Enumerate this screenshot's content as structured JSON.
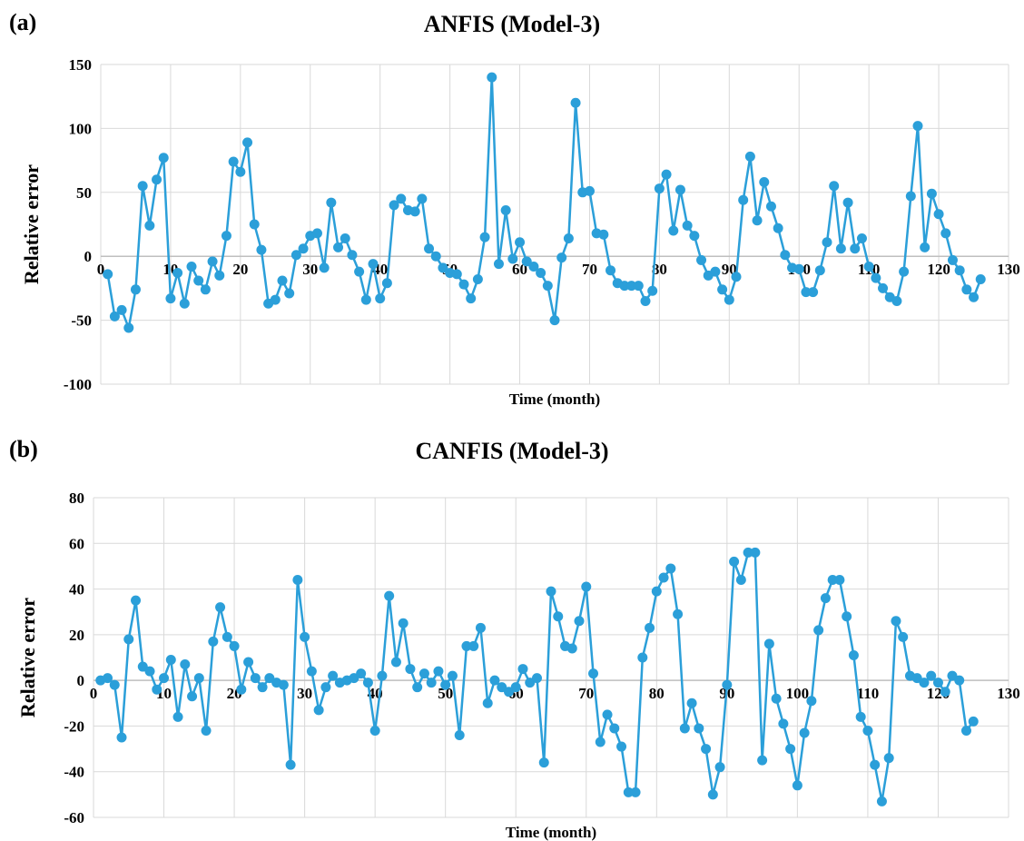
{
  "colors": {
    "series": "#2b9fd9",
    "grid": "#d9d9d9",
    "axis": "#bfbfbf"
  },
  "panels": [
    {
      "tag": "(a)"
    },
    {
      "tag": "(b)"
    }
  ],
  "chart_data": [
    {
      "type": "line",
      "title": "ANFIS (Model-3)",
      "xlabel": "Time (month)",
      "ylabel": "Relative error",
      "xlim": [
        0,
        130
      ],
      "ylim": [
        -100,
        150
      ],
      "xticks": [
        0,
        10,
        20,
        30,
        40,
        50,
        60,
        70,
        80,
        90,
        100,
        110,
        120,
        130
      ],
      "yticks": [
        -100,
        -50,
        0,
        50,
        100,
        150
      ],
      "grid": true,
      "markers": true,
      "series": [
        {
          "values": [
            -14,
            -47,
            -42,
            -56,
            -26,
            55,
            24,
            60,
            77,
            -33,
            -13,
            -37,
            -8,
            -19,
            -26,
            -4,
            -15,
            16,
            74,
            66,
            89,
            25,
            5,
            -37,
            -34,
            -19,
            -29,
            1,
            6,
            16,
            18,
            -9,
            42,
            7,
            14,
            1,
            -12,
            -34,
            -6,
            -33,
            -21,
            40,
            45,
            36,
            35,
            45,
            6,
            0,
            -9,
            -13,
            -14,
            -22,
            -33,
            -18,
            15,
            140,
            -6,
            36,
            -2,
            11,
            -4,
            -8,
            -13,
            -23,
            -50,
            -1,
            14,
            120,
            50,
            51,
            18,
            17,
            -11,
            -21,
            -23,
            -23,
            -23,
            -35,
            -27,
            53,
            64,
            20,
            52,
            24,
            16,
            -3,
            -15,
            -12,
            -26,
            -34,
            -16,
            44,
            78,
            28,
            58,
            39,
            22,
            1,
            -9,
            -10,
            -28,
            -28,
            -11,
            11,
            55,
            6,
            42,
            6,
            14,
            -8,
            -17,
            -25,
            -32,
            -35,
            -12,
            47,
            102,
            7,
            49,
            33,
            18,
            -3,
            -11,
            -26,
            -32,
            -18
          ]
        }
      ]
    },
    {
      "type": "line",
      "title": "CANFIS (Model-3)",
      "xlabel": "Time (month)",
      "ylabel": "Relative error",
      "xlim": [
        0,
        130
      ],
      "ylim": [
        -60,
        80
      ],
      "xticks": [
        0,
        10,
        20,
        30,
        40,
        50,
        60,
        70,
        80,
        90,
        100,
        110,
        120,
        130
      ],
      "yticks": [
        -60,
        -40,
        -20,
        0,
        20,
        40,
        60,
        80
      ],
      "grid": true,
      "markers": true,
      "series": [
        {
          "values": [
            0,
            1,
            -2,
            -25,
            18,
            35,
            6,
            4,
            -4,
            1,
            9,
            -16,
            7,
            -7,
            1,
            -22,
            17,
            32,
            19,
            15,
            -4,
            8,
            1,
            -3,
            1,
            -1,
            -2,
            -37,
            44,
            19,
            4,
            -13,
            -3,
            2,
            -1,
            0,
            1,
            3,
            -1,
            -22,
            2,
            37,
            8,
            25,
            5,
            -3,
            3,
            -1,
            4,
            -2,
            2,
            -24,
            15,
            15,
            23,
            -10,
            0,
            -3,
            -5,
            -3,
            5,
            -1,
            1,
            -36,
            39,
            28,
            15,
            14,
            26,
            41,
            3,
            -27,
            -15,
            -21,
            -29,
            -49,
            -49,
            10,
            23,
            39,
            45,
            49,
            29,
            -21,
            -10,
            -21,
            -30,
            -50,
            -38,
            -2,
            52,
            44,
            56,
            56,
            -35,
            16,
            -8,
            -19,
            -30,
            -46,
            -23,
            -9,
            22,
            36,
            44,
            44,
            28,
            11,
            -16,
            -22,
            -37,
            -53,
            -34,
            26,
            19,
            2,
            1,
            -1,
            2,
            -1,
            -5,
            2,
            0,
            -22,
            -18
          ]
        }
      ]
    }
  ]
}
